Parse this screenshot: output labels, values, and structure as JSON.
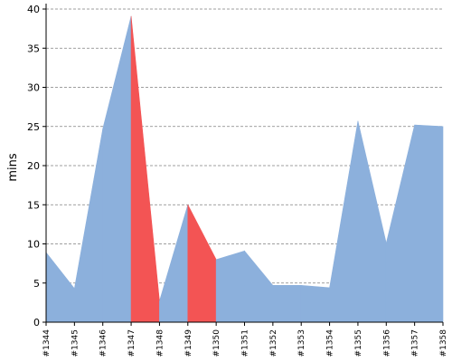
{
  "chart_data": {
    "type": "area",
    "title": "",
    "xlabel": "",
    "ylabel": "mins",
    "ylim": [
      0,
      40
    ],
    "yticks": [
      0,
      5,
      10,
      15,
      20,
      25,
      30,
      35,
      40
    ],
    "grid": true,
    "categories": [
      "#1344",
      "#1345",
      "#1346",
      "#1347",
      "#1348",
      "#1349",
      "#1350",
      "#1351",
      "#1352",
      "#1353",
      "#1354",
      "#1355",
      "#1356",
      "#1357",
      "#1358"
    ],
    "values": [
      8.9,
      4.3,
      24.7,
      39.1,
      2.7,
      15.0,
      8.0,
      9.1,
      4.7,
      4.7,
      4.4,
      25.7,
      10.1,
      25.2,
      25.0
    ],
    "status": [
      "success",
      "success",
      "success",
      "success",
      "failed",
      "success",
      "failed",
      "success",
      "success",
      "success",
      "success",
      "success",
      "success",
      "success",
      "success"
    ],
    "colors": {
      "success": "#8cb0dc",
      "failed": "#f35454"
    }
  }
}
